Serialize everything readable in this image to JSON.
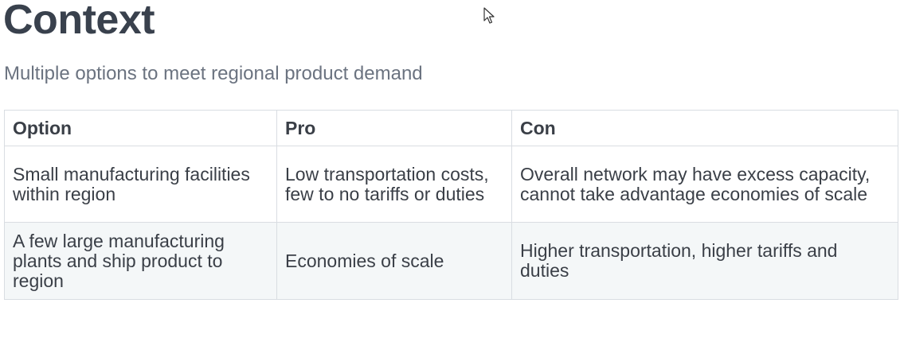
{
  "title": "Context",
  "subtitle": "Multiple options to meet regional product demand",
  "table": {
    "headers": [
      "Option",
      "Pro",
      "Con"
    ],
    "rows": [
      {
        "option": "Small manufacturing facilities within region",
        "pro": "Low transportation costs, few to no tariffs or duties",
        "con": "Overall network may have excess capacity, cannot take advantage economies of scale"
      },
      {
        "option": "A few large manufacturing plants and ship product to region",
        "pro": "Economies of scale",
        "con": "Higher transportation, higher tariffs and duties"
      }
    ]
  },
  "cursor": "mouse-pointer-icon"
}
